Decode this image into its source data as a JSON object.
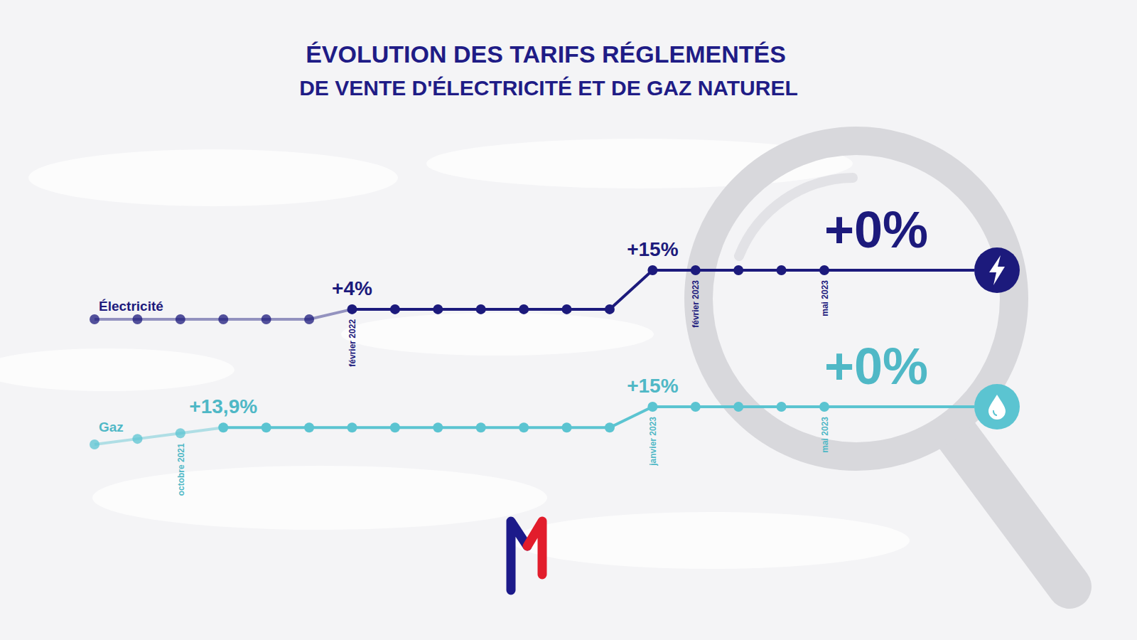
{
  "title": "ÉVOLUTION DES TARIFS RÉGLEMENTÉS",
  "subtitle": "DE VENTE D'ÉLECTRICITÉ ET DE GAZ NATUREL",
  "chart_data": [
    {
      "type": "line",
      "categories": [
        null,
        null,
        null,
        null,
        null,
        null,
        "février 2022",
        null,
        null,
        null,
        null,
        null,
        null,
        null,
        "février 2023",
        null,
        null,
        "mai 2023"
      ],
      "series": [
        {
          "name": "Électricité",
          "color": "#1c1a7c",
          "marker": "circle",
          "values": [
            100,
            100,
            100,
            100,
            100,
            100,
            104,
            104,
            104,
            104,
            104,
            104,
            104,
            119.6,
            119.6,
            119.6,
            119.6,
            119.6
          ]
        }
      ],
      "annotations": [
        {
          "text": "+4%",
          "index": 6
        },
        {
          "text": "+15%",
          "index": 13
        },
        {
          "text": "+0%",
          "index": 17
        }
      ],
      "tick_labels": "x",
      "grid": false
    },
    {
      "type": "line",
      "categories": [
        null,
        null,
        "octobre 2021",
        null,
        null,
        null,
        null,
        null,
        null,
        null,
        null,
        null,
        null,
        "janvier 2023",
        null,
        null,
        null,
        "mai 2023"
      ],
      "series": [
        {
          "name": "Gaz",
          "color": "#5bc4d1",
          "marker": "circle",
          "values": [
            100,
            104.6,
            109.2,
            113.9,
            113.9,
            113.9,
            113.9,
            113.9,
            113.9,
            113.9,
            113.9,
            113.9,
            113.9,
            131,
            131,
            131,
            131,
            131
          ]
        }
      ],
      "annotations": [
        {
          "text": "+13,9%",
          "index": 3
        },
        {
          "text": "+15%",
          "index": 13
        },
        {
          "text": "+0%",
          "index": 17
        }
      ],
      "tick_labels": "x",
      "grid": false
    }
  ]
}
